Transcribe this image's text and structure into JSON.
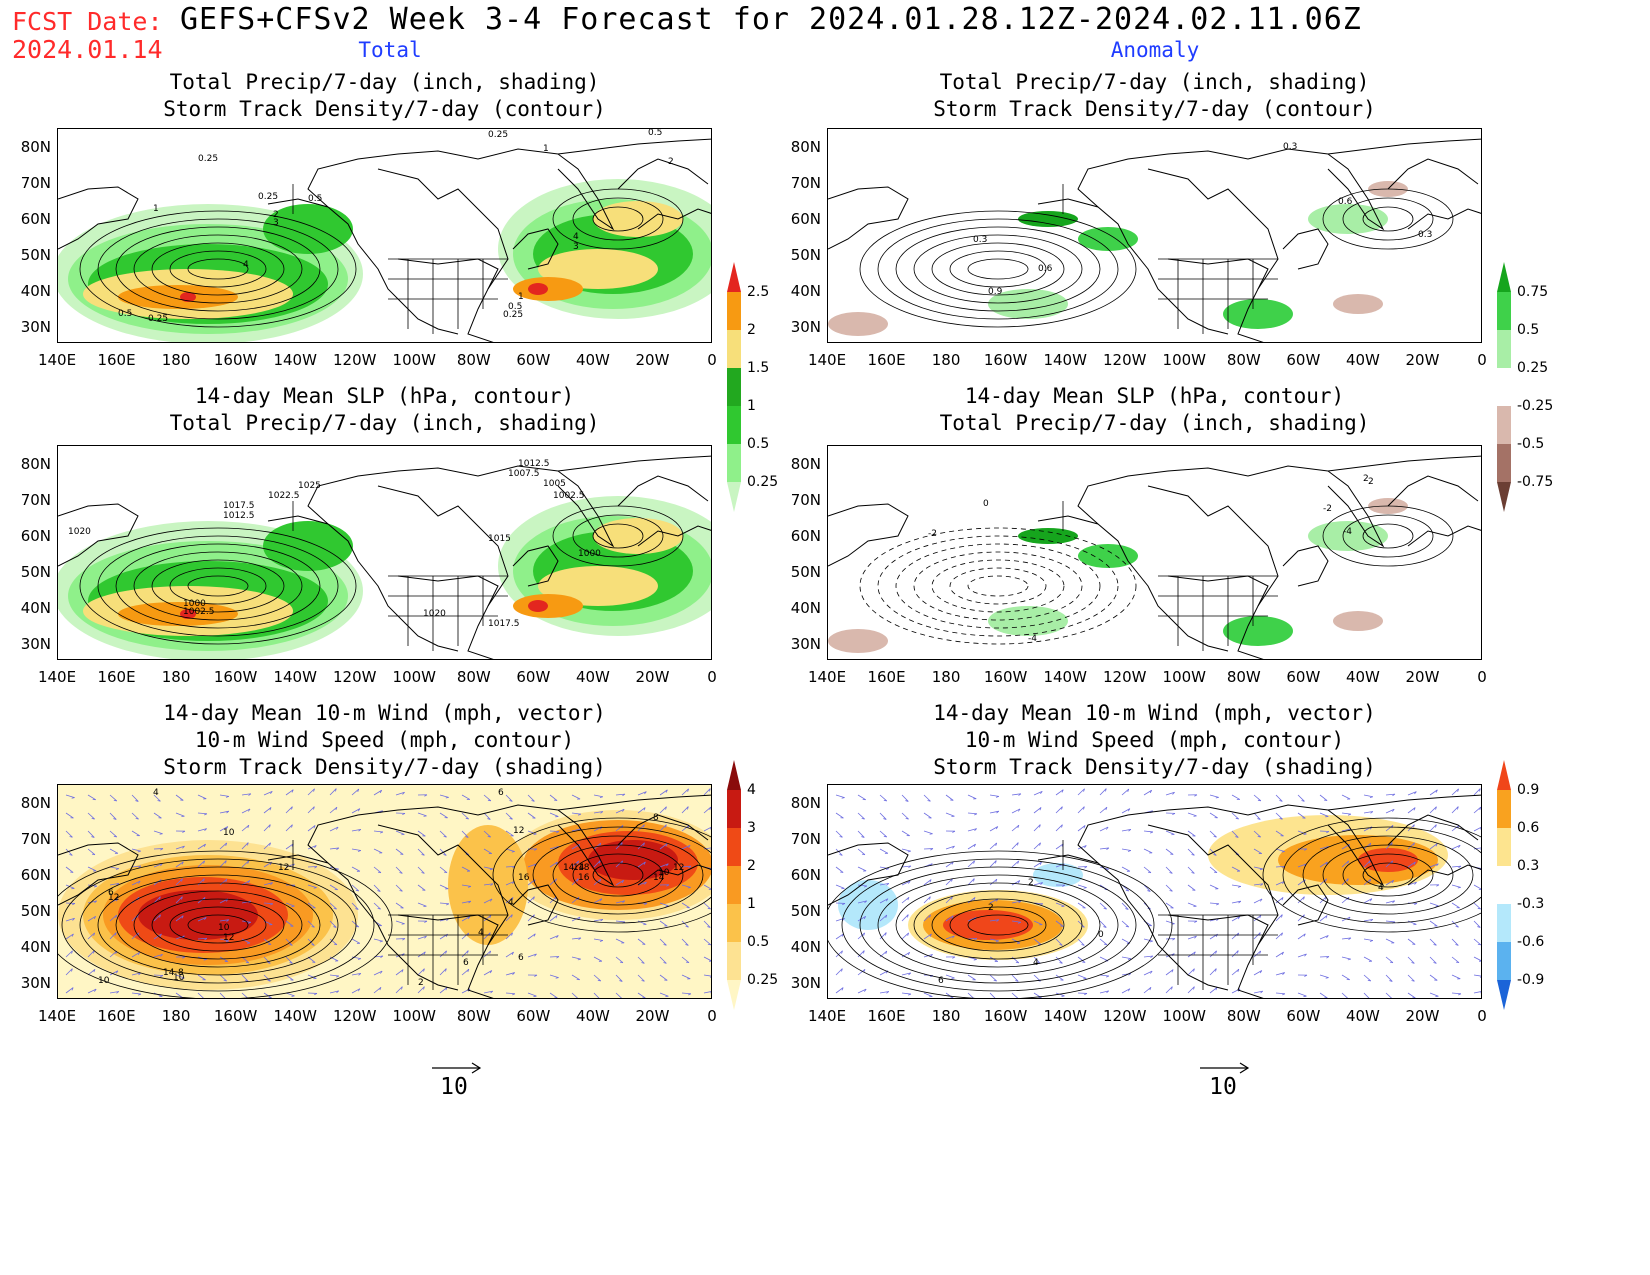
{
  "header": {
    "fcst_label": "FCST Date:",
    "fcst_date": "2024.01.14",
    "title": "GEFS+CFSv2 Week 3-4 Forecast for 2024.01.28.12Z-2024.02.11.06Z",
    "col_total": "Total",
    "col_anomaly": "Anomaly"
  },
  "axes": {
    "lat_ticks": [
      "80N",
      "70N",
      "60N",
      "50N",
      "40N",
      "30N"
    ],
    "lon_ticks": [
      "140E",
      "160E",
      "180",
      "160W",
      "140W",
      "120W",
      "100W",
      "80W",
      "60W",
      "40W",
      "20W",
      "0"
    ]
  },
  "panels": [
    {
      "id": "total-precip-storm",
      "title1": "Total Precip/7-day (inch, shading)",
      "title2": "Storm Track Density/7-day (contour)",
      "title3": "",
      "field": "precip_total"
    },
    {
      "id": "anom-precip-storm",
      "title1": "Total Precip/7-day (inch, shading)",
      "title2": "Storm Track Density/7-day (contour)",
      "title3": "",
      "field": "precip_anom"
    },
    {
      "id": "total-slp-precip",
      "title1": "14-day Mean SLP (hPa, contour)",
      "title2": "Total Precip/7-day (inch, shading)",
      "title3": "",
      "field": "precip_total"
    },
    {
      "id": "anom-slp-precip",
      "title1": "14-day Mean SLP (hPa, contour)",
      "title2": "Total Precip/7-day (inch, shading)",
      "title3": "",
      "field": "precip_anom"
    },
    {
      "id": "total-wind-storm",
      "title1": "14-day Mean 10-m Wind (mph, vector)",
      "title2": "10-m Wind Speed (mph, contour)",
      "title3": "Storm Track Density/7-day (shading)",
      "field": "storm_total"
    },
    {
      "id": "anom-wind-storm",
      "title1": "14-day Mean 10-m Wind (mph, vector)",
      "title2": "10-m Wind Speed (mph, contour)",
      "title3": "Storm Track Density/7-day (shading)",
      "field": "storm_anom"
    }
  ],
  "colorbars": {
    "precip_total": {
      "labels": [
        "2.5",
        "2",
        "1.5",
        "1",
        "0.5",
        "0.25"
      ],
      "colors": [
        "#e3261f",
        "#f79a12",
        "#f7df7a",
        "#22a81f",
        "#30c830",
        "#8ff08a",
        "#c9f5c2"
      ]
    },
    "precip_anom": {
      "labels": [
        "0.75",
        "0.5",
        "0.25",
        "-0.25",
        "-0.5",
        "-0.75"
      ],
      "colors": [
        "#16a51d",
        "#3fd14a",
        "#a8eea6",
        "#ffffff",
        "#d9b8ad",
        "#a47266",
        "#6b3e33"
      ]
    },
    "storm_total": {
      "labels": [
        "4",
        "3",
        "2",
        "1",
        "0.5",
        "0.25"
      ],
      "colors": [
        "#8a0b0b",
        "#c81a12",
        "#ef4a16",
        "#f99a22",
        "#fbc24a",
        "#fde292",
        "#fff6c5"
      ]
    },
    "storm_anom": {
      "labels": [
        "0.9",
        "0.6",
        "0.3",
        "-0.3",
        "-0.6",
        "-0.9"
      ],
      "colors": [
        "#f0461a",
        "#f9a21f",
        "#fde48f",
        "#ffffff",
        "#b4e8fb",
        "#5bb2ef",
        "#1b64d8"
      ]
    }
  },
  "contour_labels": {
    "p1": [
      "0.25",
      "0.25",
      "0.5",
      "1",
      "2",
      "4",
      "3",
      "0.5",
      "0.25",
      "0.5",
      "1",
      "2",
      "4",
      "3",
      "1",
      "0.5",
      "0.25",
      "0.25"
    ],
    "p2": [
      "0.3",
      "0.6",
      "0.9",
      "0.3",
      "0.6",
      "0.3"
    ],
    "p3": [
      "1012.5",
      "1007.5",
      "1005",
      "1002.5",
      "1025",
      "1022.5",
      "1017.5",
      "1012.5",
      "1020",
      "1015",
      "1000",
      "1000",
      "1002.5",
      "1020",
      "1017.5"
    ],
    "p4": [
      "2",
      "0",
      "-2",
      "-4",
      "-4",
      "-2",
      "2"
    ],
    "p5": [
      "4",
      "6",
      "8",
      "10",
      "12",
      "14",
      "12",
      "6",
      "10",
      "12",
      "14",
      "16",
      "18",
      "14",
      "10",
      "8",
      "10",
      "12",
      "16",
      "14",
      "12",
      "10",
      "6",
      "4",
      "6",
      "2",
      "4"
    ],
    "p6": [
      "2",
      "4",
      "4",
      "6",
      "2",
      "0"
    ]
  },
  "reference_vector": "10",
  "map_colors": {
    "land_line": "#000000",
    "contour": "#000000",
    "vector": "#6d6de0"
  }
}
